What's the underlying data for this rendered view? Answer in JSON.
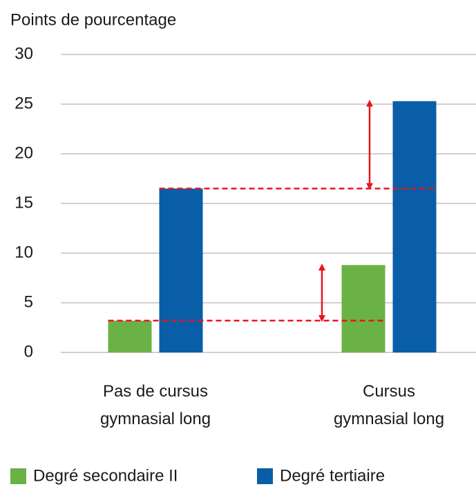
{
  "chart_data": {
    "type": "bar",
    "y_axis_label": "Points de pourcentage",
    "categories": [
      "Pas de cursus\ngymnasial long",
      "Cursus\ngymnasial long"
    ],
    "series": [
      {
        "name": "Degré secondaire II",
        "color": "#6ab245",
        "values": [
          3.2,
          8.8
        ]
      },
      {
        "name": "Degré tertiaire",
        "color": "#0a5ea8",
        "values": [
          16.5,
          25.3
        ]
      }
    ],
    "ylim": [
      0,
      30
    ],
    "yticks": [
      0,
      5,
      10,
      15,
      20,
      25,
      30
    ],
    "grid": true,
    "annotation_color": "#e8141b"
  }
}
